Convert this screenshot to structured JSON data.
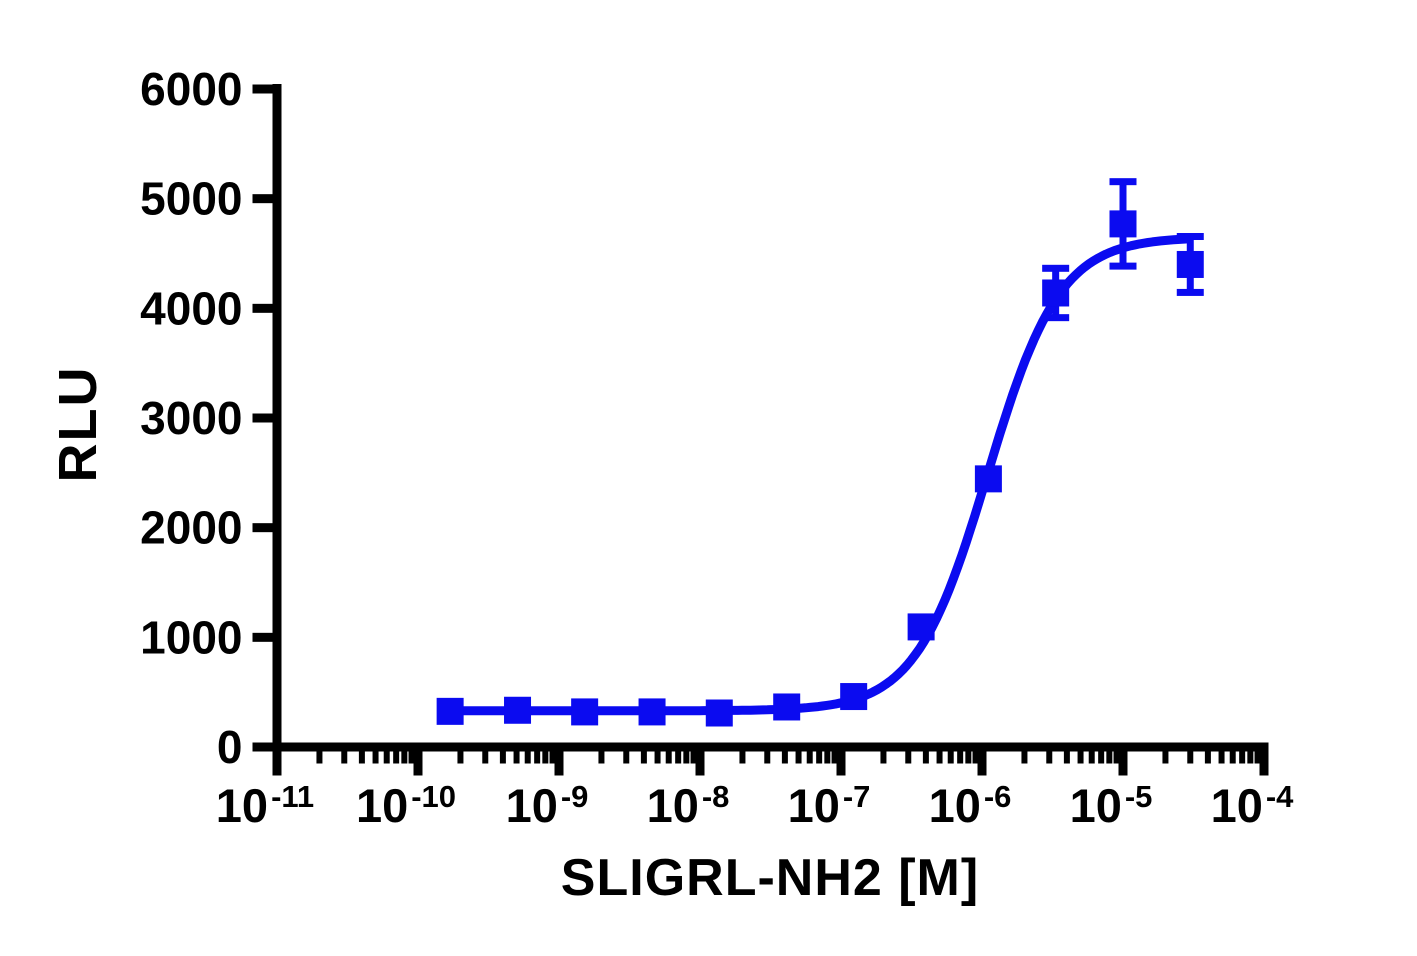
{
  "chart_data": {
    "type": "scatter",
    "title": "",
    "xlabel": "SLIGRL-NH2 [M]",
    "ylabel": "RLU",
    "x_scale": "log10",
    "x_unit": "M",
    "x_tick_exponents": [
      -11,
      -10,
      -9,
      -8,
      -7,
      -6,
      -5,
      -4
    ],
    "x_minor_tick_multiples": [
      2,
      3,
      4,
      5,
      6,
      7,
      8,
      9
    ],
    "ylim": [
      0,
      6000
    ],
    "y_ticks": [
      0,
      1000,
      2000,
      3000,
      4000,
      5000,
      6000
    ],
    "grid": false,
    "legend": null,
    "series": [
      {
        "name": "SLIGRL-NH2",
        "marker": "square",
        "color": "#0b0bf0",
        "points": [
          {
            "x": 1.69e-10,
            "y": 325,
            "yerr": 0
          },
          {
            "x": 5.08e-10,
            "y": 335,
            "yerr": 0
          },
          {
            "x": 1.52e-09,
            "y": 320,
            "yerr": 0
          },
          {
            "x": 4.57e-09,
            "y": 320,
            "yerr": 0
          },
          {
            "x": 1.37e-08,
            "y": 310,
            "yerr": 0
          },
          {
            "x": 4.12e-08,
            "y": 365,
            "yerr": 0
          },
          {
            "x": 1.23e-07,
            "y": 460,
            "yerr": 0
          },
          {
            "x": 3.7e-07,
            "y": 1095,
            "yerr": 0
          },
          {
            "x": 1.11e-06,
            "y": 2445,
            "yerr": 0
          },
          {
            "x": 3.33e-06,
            "y": 4140,
            "yerr": 225
          },
          {
            "x": 1e-05,
            "y": 4770,
            "yerr": 385
          },
          {
            "x": 3e-05,
            "y": 4400,
            "yerr": 255
          }
        ],
        "fit_curve": {
          "model": "four-parameter logistic (sigmoidal dose-response)",
          "bottom": 330,
          "top": 4650,
          "log_ec50": -5.96,
          "hill_slope": 1.7,
          "x_start_exp": -9.772,
          "x_end_exp": -4.523
        }
      }
    ]
  },
  "colors": {
    "axis": "#000000",
    "series": "#0b0bf0",
    "background": "#ffffff"
  }
}
